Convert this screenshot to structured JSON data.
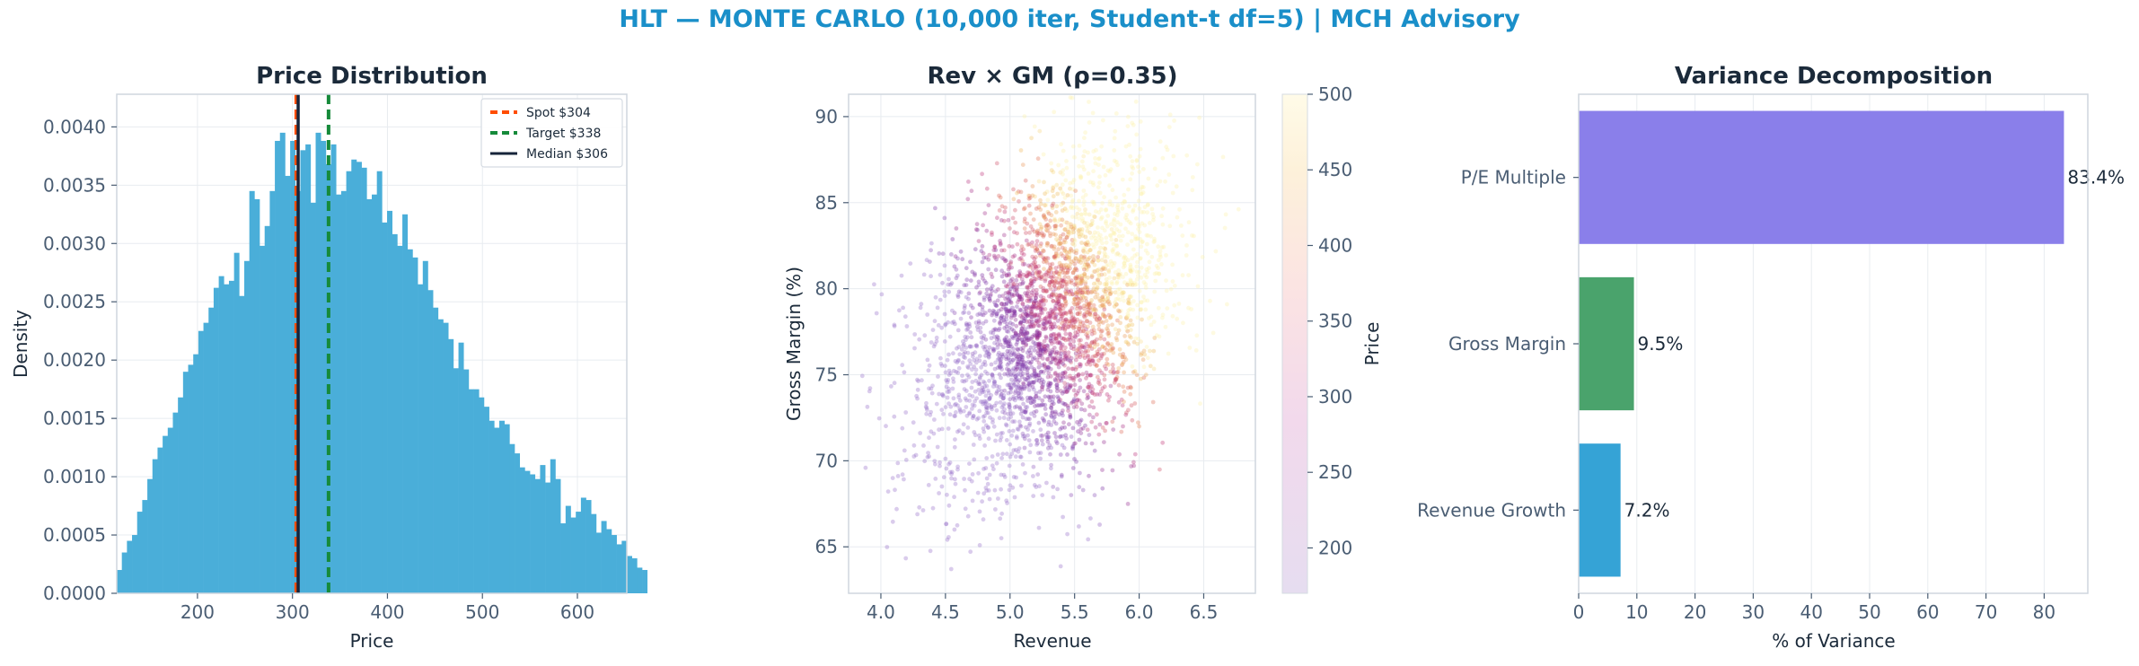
{
  "figure_title": "HLT — MONTE CARLO (10,000 iter, Student-t df=5) | MCH Advisory",
  "colors": {
    "title": "#1a8fc9",
    "hist": "#4aaed9",
    "spot": "#ff4d00",
    "target": "#168a3a",
    "median": "#16243a",
    "pe": "#8a7fea",
    "gm": "#4aa36c",
    "rev": "#35a3d6"
  },
  "chart_data": [
    {
      "type": "bar",
      "subtype": "histogram",
      "title": "Price Distribution",
      "xlabel": "Price",
      "ylabel": "Density",
      "xlim": [
        115,
        652
      ],
      "ylim": [
        0,
        0.00428
      ],
      "xticks": [
        200,
        300,
        400,
        500,
        600
      ],
      "yticks": [
        0.0,
        0.0005,
        0.001,
        0.0015,
        0.002,
        0.0025,
        0.003,
        0.0035,
        0.004
      ],
      "ytick_labels": [
        "0.0000",
        "0.0005",
        "0.0010",
        "0.0015",
        "0.0020",
        "0.0025",
        "0.0030",
        "0.0035",
        "0.0040"
      ],
      "bin_start": 115,
      "bin_width": 5.37,
      "values": [
        0.0002,
        0.00035,
        0.00045,
        0.0005,
        0.0007,
        0.0008,
        0.00098,
        0.00115,
        0.00125,
        0.00135,
        0.00142,
        0.00155,
        0.00168,
        0.0019,
        0.00196,
        0.00205,
        0.00225,
        0.00232,
        0.00245,
        0.00262,
        0.00272,
        0.00265,
        0.00268,
        0.00292,
        0.00255,
        0.00285,
        0.00345,
        0.00338,
        0.00298,
        0.00315,
        0.00345,
        0.00388,
        0.00395,
        0.00358,
        0.00388,
        0.00345,
        0.0038,
        0.00385,
        0.00335,
        0.00395,
        0.00388,
        0.00368,
        0.00385,
        0.00342,
        0.00345,
        0.00362,
        0.00372,
        0.0037,
        0.00365,
        0.00338,
        0.00342,
        0.00362,
        0.00318,
        0.00328,
        0.00308,
        0.00298,
        0.00325,
        0.00295,
        0.00288,
        0.00265,
        0.00285,
        0.0026,
        0.00245,
        0.00235,
        0.00232,
        0.00218,
        0.00193,
        0.00215,
        0.00192,
        0.00175,
        0.00175,
        0.00168,
        0.0016,
        0.00148,
        0.00142,
        0.00148,
        0.00145,
        0.00128,
        0.0012,
        0.00108,
        0.00105,
        0.00102,
        0.00098,
        0.0011,
        0.00095,
        0.00115,
        0.00098,
        0.0006,
        0.00075,
        0.00065,
        0.0007,
        0.00082,
        0.0008,
        0.00068,
        0.00052,
        0.00062,
        0.00055,
        0.0005,
        0.00042,
        0.00045,
        0.00032,
        0.0003,
        0.00022,
        0.0002
      ],
      "vlines": [
        {
          "label": "Spot $304",
          "x": 304,
          "style": "dashed",
          "color_key": "spot"
        },
        {
          "label": "Target $338",
          "x": 338,
          "style": "dashed",
          "color_key": "target"
        },
        {
          "label": "Median $306",
          "x": 306,
          "style": "solid",
          "color_key": "median"
        }
      ],
      "legend_position": "top-right",
      "grid": true
    },
    {
      "type": "scatter",
      "title": "Rev × GM (ρ=0.35)",
      "xlabel": "Revenue",
      "ylabel": "Gross Margin (%)",
      "xlim": [
        3.75,
        6.9
      ],
      "ylim": [
        62.3,
        91.3
      ],
      "xticks": [
        4.0,
        4.5,
        5.0,
        5.5,
        6.0,
        6.5
      ],
      "xtick_labels": [
        "4.0",
        "4.5",
        "5.0",
        "5.5",
        "6.0",
        "6.5"
      ],
      "yticks": [
        65,
        70,
        75,
        80,
        85,
        90
      ],
      "color_by": "Price",
      "colorbar": {
        "label": "Price",
        "range": [
          170,
          500
        ],
        "ticks": [
          200,
          250,
          300,
          350,
          400,
          450,
          500
        ],
        "colormap": "plasma (light, reversed)"
      },
      "n_points": 10000,
      "correlation": 0.35,
      "revenue_mean": 5.3,
      "revenue_sd": 0.45,
      "gm_mean": 78,
      "gm_sd": 4.5,
      "grid": true
    },
    {
      "type": "bar",
      "orientation": "horizontal",
      "title": "Variance Decomposition",
      "xlabel": "% of Variance",
      "ylabel": "",
      "xlim": [
        0,
        87.5
      ],
      "xticks": [
        0,
        10,
        20,
        30,
        40,
        50,
        60,
        70,
        80
      ],
      "categories": [
        "P/E Multiple",
        "Gross Margin",
        "Revenue Growth"
      ],
      "values": [
        83.4,
        9.5,
        7.2
      ],
      "value_labels": [
        "83.4%",
        "9.5%",
        "7.2%"
      ],
      "bar_color_keys": [
        "pe",
        "gm",
        "rev"
      ],
      "grid": true
    }
  ]
}
